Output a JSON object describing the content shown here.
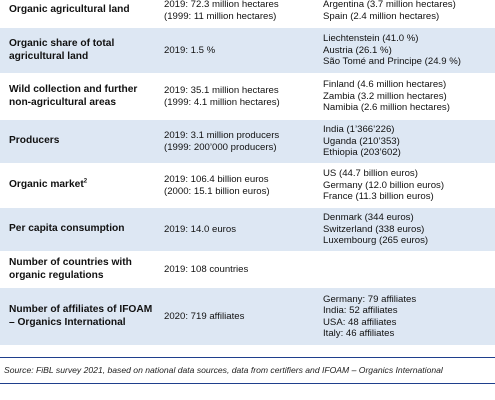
{
  "rows": [
    {
      "label": "Organic agricultural land",
      "values": [
        "2019: 72.3 million hectares",
        "(1999: 11 million hectares)"
      ],
      "leaders": [
        "Argentina (3.7 million hectares)",
        "Spain (2.4 million hectares)"
      ]
    },
    {
      "label_lines": [
        "Organic share of total",
        "agricultural land"
      ],
      "values": [
        "2019: 1.5 %"
      ],
      "leaders": [
        "Liechtenstein (41.0 %)",
        "Austria (26.1 %)",
        "São Tomé and Principe (24.9 %)"
      ]
    },
    {
      "label_lines": [
        "Wild collection and further",
        "non-agricultural areas"
      ],
      "values": [
        "2019: 35.1 million hectares",
        "(1999: 4.1 million hectares)"
      ],
      "leaders": [
        "Finland (4.6 million hectares)",
        "Zambia (3.2 million hectares)",
        "Namibia (2.6 million hectares)"
      ]
    },
    {
      "label": "Producers",
      "values": [
        "2019: 3.1 million producers",
        "(1999: 200’000 producers)"
      ],
      "leaders": [
        "India (1’366’226)",
        "Uganda (210’353)",
        "Ethiopia (203’602)"
      ]
    },
    {
      "label": "Organic market",
      "label_sup": "2",
      "values": [
        "2019: 106.4 billion euros",
        "(2000: 15.1 billion euros)"
      ],
      "leaders": [
        "US (44.7 billion euros)",
        "Germany (12.0 billion euros)",
        "France (11.3 billion euros)"
      ]
    },
    {
      "label": "Per capita consumption",
      "values": [
        "2019: 14.0 euros"
      ],
      "leaders": [
        "Denmark (344 euros)",
        "Switzerland (338 euros)",
        "Luxembourg (265 euros)"
      ]
    },
    {
      "label_lines": [
        "Number of countries with",
        "organic regulations"
      ],
      "values": [
        "2019: 108 countries"
      ],
      "leaders": []
    },
    {
      "label_lines": [
        "Number of affiliates of IFOAM",
        "– Organics International"
      ],
      "values": [
        "2020: 719 affiliates"
      ],
      "leaders": [
        "Germany: 79 affiliates",
        "India: 52 affiliates",
        "USA: 48 affiliates",
        "Italy: 46 affiliates"
      ]
    }
  ],
  "source": "Source: FiBL survey 2021, based on national data sources, data from certifiers and IFOAM – Organics International"
}
